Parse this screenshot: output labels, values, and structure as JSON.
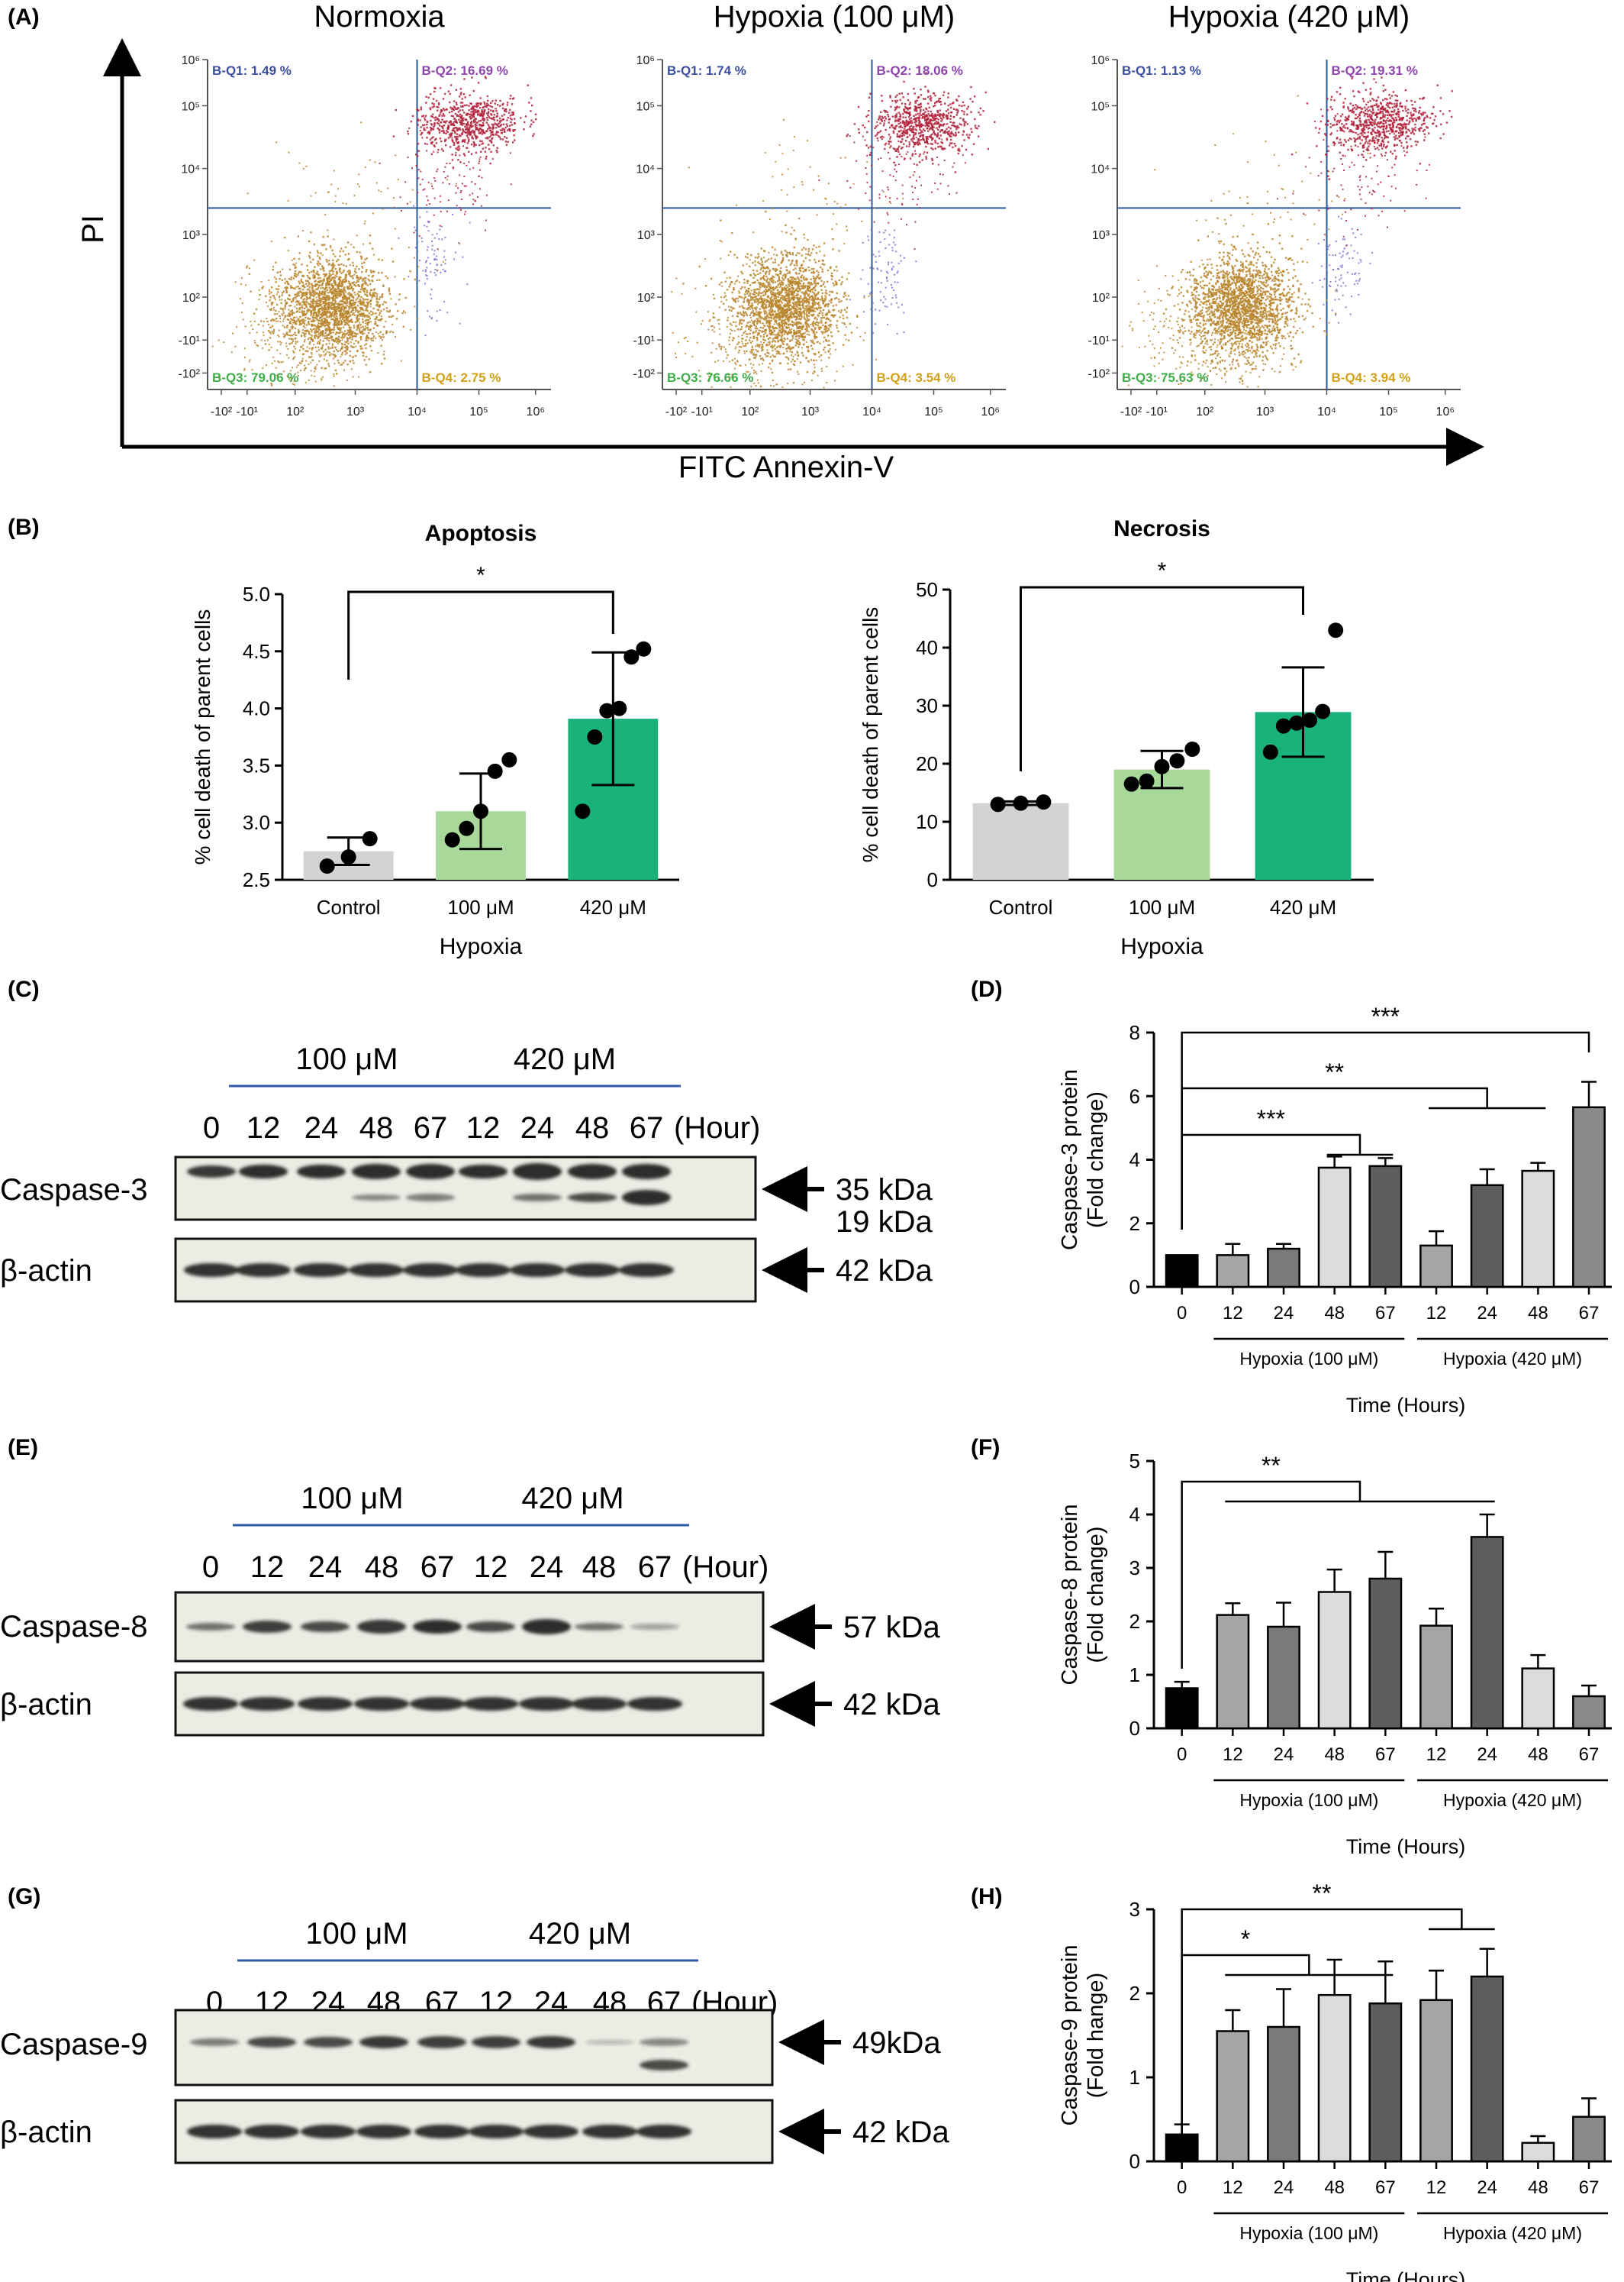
{
  "figure": {
    "panel_letters": [
      "(A)",
      "(B)",
      "(C)",
      "(D)",
      "(E)",
      "(F)",
      "(G)",
      "(H)"
    ]
  },
  "flow": {
    "ylabel": "PI",
    "xlabel": "FITC Annexin-V",
    "x_ticks": [
      "-10²",
      "-10¹",
      "10²",
      "10³",
      "10⁴",
      "10⁵",
      "10⁶"
    ],
    "y_ticks": [
      "10⁶",
      "10⁵",
      "10⁴",
      "10³",
      "10²",
      "-10¹",
      "-10²"
    ],
    "colors": {
      "q1": "#3a4fa0",
      "q2": "#8e44ad",
      "q3": "#3fae49",
      "q4": "#d4a017",
      "gate": "#2a5a9a",
      "live": "#b8862e",
      "late": "#b0213a",
      "early": "#7b6fd0"
    },
    "plots": [
      {
        "title": "Normoxia",
        "q1": "B-Q1: 1.49 %",
        "q2": "B-Q2: 16.69 %",
        "q3": "B-Q3: 79.06 %",
        "q4": "B-Q4: 2.75 %"
      },
      {
        "title": "Hypoxia (100 μM)",
        "q1": "B-Q1: 1.74 %",
        "q2": "B-Q2: 18.06 %",
        "q3": "B-Q3: 76.66 %",
        "q4": "B-Q4: 3.54 %"
      },
      {
        "title": "Hypoxia (420 μM)",
        "q1": "B-Q1: 1.13 %",
        "q2": "B-Q2: 19.31 %",
        "q3": "B-Q3: 75.63 %",
        "q4": "B-Q4: 3.94 %"
      }
    ]
  },
  "chart_data": [
    {
      "panel": "(B)",
      "type": "bar",
      "title": "Apoptosis",
      "ylabel": "% cell death of parent cells",
      "xgroup_label": "Hypoxia",
      "categories": [
        "Control",
        "100 μM",
        "420 μM"
      ],
      "values": [
        2.75,
        3.1,
        3.91
      ],
      "errors": [
        0.12,
        0.33,
        0.58
      ],
      "points": [
        [
          2.62,
          2.7,
          2.86
        ],
        [
          2.85,
          2.95,
          3.1,
          3.45,
          3.55
        ],
        [
          3.1,
          3.75,
          3.98,
          4.0,
          4.45,
          4.52
        ]
      ],
      "bar_colors": [
        "#d3d3d3",
        "#a8d89a",
        "#19b27a"
      ],
      "ylim": [
        2.5,
        5.0
      ],
      "yticks": [
        "2.5",
        "3.0",
        "3.5",
        "4.0",
        "4.5",
        "5.0"
      ],
      "significance": "*"
    },
    {
      "panel": "(B)",
      "type": "bar",
      "title": "Necrosis",
      "ylabel": "% cell death of parent cells",
      "xgroup_label": "Hypoxia",
      "categories": [
        "Control",
        "100 μM",
        "420 μM"
      ],
      "values": [
        13.2,
        19.0,
        28.9
      ],
      "errors": [
        0.3,
        3.2,
        7.7
      ],
      "points": [
        [
          13.0,
          13.2,
          13.4
        ],
        [
          16.5,
          17.0,
          19.5,
          20.5,
          22.5
        ],
        [
          22.0,
          26.5,
          27.0,
          27.5,
          29.0,
          43.0
        ]
      ],
      "bar_colors": [
        "#d3d3d3",
        "#a8d89a",
        "#19b27a"
      ],
      "ylim": [
        0,
        50
      ],
      "yticks": [
        "0",
        "10",
        "20",
        "30",
        "40",
        "50"
      ],
      "significance": "*"
    },
    {
      "panel": "(D)",
      "type": "bar",
      "ylabel": "Caspase-3 protein (Fold change)",
      "xlabel": "Time (Hours)",
      "categories": [
        "0",
        "12",
        "24",
        "48",
        "67",
        "12",
        "24",
        "48",
        "67"
      ],
      "groups": [
        "Hypoxia (100 μM)",
        "Hypoxia (420 μM)"
      ],
      "values": [
        1.0,
        1.0,
        1.2,
        3.75,
        3.8,
        1.3,
        3.2,
        3.65,
        5.65
      ],
      "errors": [
        0.0,
        0.35,
        0.15,
        0.35,
        0.25,
        0.45,
        0.5,
        0.25,
        0.8
      ],
      "ylim": [
        0,
        8
      ],
      "yticks": [
        "0",
        "2",
        "4",
        "6",
        "8"
      ],
      "significance": [
        "***",
        "**",
        "***"
      ]
    },
    {
      "panel": "(F)",
      "type": "bar",
      "ylabel": "Caspase-8 protein (Fold change)",
      "xlabel": "Time (Hours)",
      "categories": [
        "0",
        "12",
        "24",
        "48",
        "67",
        "12",
        "24",
        "48",
        "67"
      ],
      "groups": [
        "Hypoxia (100 μM)",
        "Hypoxia (420 μM)"
      ],
      "values": [
        0.75,
        2.12,
        1.9,
        2.55,
        2.8,
        1.92,
        3.58,
        1.12,
        0.6
      ],
      "errors": [
        0.12,
        0.22,
        0.45,
        0.42,
        0.5,
        0.32,
        0.42,
        0.25,
        0.2
      ],
      "ylim": [
        0,
        5
      ],
      "yticks": [
        "0",
        "1",
        "2",
        "3",
        "4",
        "5"
      ],
      "significance": [
        "**"
      ]
    },
    {
      "panel": "(H)",
      "type": "bar",
      "ylabel": "Caspase-9 protein (Fold hange)",
      "xlabel": "Time (Hours)",
      "categories": [
        "0",
        "12",
        "24",
        "48",
        "67",
        "12",
        "24",
        "48",
        "67"
      ],
      "groups": [
        "Hypoxia (100 μM)",
        "Hypoxia (420 μM)"
      ],
      "values": [
        0.32,
        1.55,
        1.6,
        1.98,
        1.88,
        1.92,
        2.2,
        0.22,
        0.53
      ],
      "errors": [
        0.12,
        0.25,
        0.45,
        0.42,
        0.5,
        0.35,
        0.33,
        0.08,
        0.22
      ],
      "ylim": [
        0,
        3
      ],
      "yticks": [
        "0",
        "1",
        "2",
        "3"
      ],
      "significance": [
        "*",
        "**"
      ]
    }
  ],
  "blots": [
    {
      "panel": "(C)",
      "group_labels": [
        "100 μM",
        "420 μM"
      ],
      "lanes": [
        "0",
        "12",
        "24",
        "48",
        "67",
        "12",
        "24",
        "48",
        "67"
      ],
      "hour_label": "(Hour)",
      "target": "Caspase-3",
      "target_kda": [
        "35 kDa",
        "19 kDa"
      ],
      "actin": "β-actin",
      "actin_kda": "42 kDa"
    },
    {
      "panel": "(E)",
      "group_labels": [
        "100 μM",
        "420 μM"
      ],
      "lanes": [
        "0",
        "12",
        "24",
        "48",
        "67",
        "12",
        "24",
        "48",
        "67"
      ],
      "hour_label": "(Hour)",
      "target": "Caspase-8",
      "target_kda": [
        "57 kDa"
      ],
      "actin": "β-actin",
      "actin_kda": "42 kDa"
    },
    {
      "panel": "(G)",
      "group_labels": [
        "100 μM",
        "420 μM"
      ],
      "lanes": [
        "0",
        "12",
        "24",
        "48",
        "67",
        "12",
        "24",
        "48",
        "67"
      ],
      "hour_label": "(Hour)",
      "target": "Caspase-9",
      "target_kda": [
        "49kDa"
      ],
      "actin": "β-actin",
      "actin_kda": "42 kDa"
    }
  ]
}
